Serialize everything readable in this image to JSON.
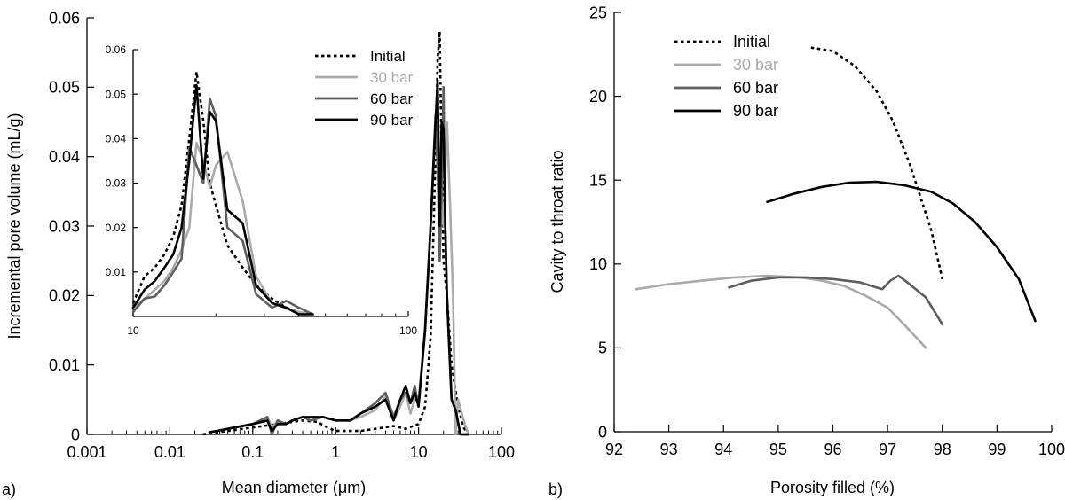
{
  "figure": {
    "panel_a_label": "a)",
    "panel_b_label": "b)"
  },
  "colors": {
    "Initial": "#000000",
    "30 bar": "#aaaaaa",
    "60 bar": "#5e5e5e",
    "90 bar": "#000000"
  },
  "chart_data": [
    {
      "id": "panel-a-main",
      "type": "line",
      "title": "",
      "xlabel": "Mean diameter (μm)",
      "ylabel": "Incremental pore volume (mL/g)",
      "xscale": "log",
      "xlim": [
        0.001,
        100
      ],
      "ylim": [
        0,
        0.06
      ],
      "xticks": [
        0.001,
        0.01,
        0.1,
        1,
        10,
        100
      ],
      "xtick_labels": [
        "0.001",
        "0.01",
        "0.1",
        "1",
        "10",
        "100"
      ],
      "yticks": [
        0,
        0.01,
        0.02,
        0.03,
        0.04,
        0.05,
        0.06
      ],
      "ytick_labels": [
        "0",
        "0.01",
        "0.02",
        "0.03",
        "0.04",
        "0.05",
        "0.06"
      ],
      "grid": false,
      "legend_position": "top-right",
      "series": [
        {
          "name": "Initial",
          "style": "dotted",
          "x": [
            0.025,
            0.05,
            0.1,
            0.2,
            0.4,
            0.6,
            0.8,
            1,
            2,
            3,
            5,
            7,
            10,
            12,
            14,
            16,
            17,
            18,
            19,
            20,
            22,
            25,
            30,
            35,
            40
          ],
          "y": [
            0.0,
            0.0005,
            0.001,
            0.0015,
            0.002,
            0.0018,
            0.001,
            0.0005,
            0.0005,
            0.0008,
            0.0012,
            0.0008,
            0.0015,
            0.004,
            0.014,
            0.04,
            0.054,
            0.058,
            0.04,
            0.025,
            0.02,
            0.01,
            0.004,
            0.001,
            0.0
          ]
        },
        {
          "name": "30 bar",
          "style": "solid",
          "x": [
            0.03,
            0.05,
            0.1,
            0.15,
            0.17,
            0.2,
            0.25,
            0.3,
            0.4,
            0.5,
            0.7,
            1,
            1.5,
            2,
            3,
            4,
            5,
            6,
            7,
            8,
            9,
            10,
            12,
            14,
            16,
            18,
            20,
            22,
            24,
            26,
            28,
            30,
            35,
            40
          ],
          "y": [
            0.0003,
            0.0008,
            0.0015,
            0.0025,
            0.001,
            0.002,
            0.0015,
            0.002,
            0.0025,
            0.002,
            0.0025,
            0.002,
            0.002,
            0.0025,
            0.0035,
            0.0055,
            0.002,
            0.004,
            0.006,
            0.003,
            0.005,
            0.005,
            0.015,
            0.03,
            0.045,
            0.038,
            0.03,
            0.045,
            0.033,
            0.02,
            0.0,
            0.005,
            0.002,
            0.0
          ]
        },
        {
          "name": "60 bar",
          "style": "solid",
          "x": [
            0.03,
            0.05,
            0.1,
            0.15,
            0.17,
            0.2,
            0.25,
            0.3,
            0.4,
            0.5,
            0.7,
            1,
            1.5,
            2,
            3,
            4,
            5,
            6,
            7,
            8,
            9,
            10,
            12,
            14,
            16,
            17,
            18,
            19,
            20,
            21,
            22,
            25,
            28,
            32,
            40
          ],
          "y": [
            0.0003,
            0.0008,
            0.0015,
            0.0025,
            0.0,
            0.002,
            0.0015,
            0.002,
            0.0025,
            0.002,
            0.0025,
            0.002,
            0.002,
            0.003,
            0.0045,
            0.006,
            0.0025,
            0.005,
            0.006,
            0.0045,
            0.007,
            0.004,
            0.0155,
            0.03,
            0.046,
            0.038,
            0.025,
            0.035,
            0.05,
            0.03,
            0.02,
            0.005,
            0.0035,
            0.0,
            0.0
          ]
        },
        {
          "name": "90 bar",
          "style": "solid",
          "x": [
            0.03,
            0.05,
            0.1,
            0.15,
            0.17,
            0.2,
            0.25,
            0.3,
            0.4,
            0.5,
            0.7,
            1,
            1.5,
            2,
            3,
            4,
            5,
            6,
            7,
            8,
            9,
            10,
            12,
            14,
            16,
            17,
            18,
            19,
            20,
            21,
            22,
            25,
            28,
            32,
            40
          ],
          "y": [
            0.0003,
            0.0008,
            0.0015,
            0.002,
            0.0005,
            0.0015,
            0.0015,
            0.002,
            0.0025,
            0.0025,
            0.0025,
            0.002,
            0.002,
            0.003,
            0.004,
            0.005,
            0.002,
            0.005,
            0.007,
            0.0045,
            0.006,
            0.004,
            0.015,
            0.03,
            0.045,
            0.051,
            0.03,
            0.045,
            0.044,
            0.03,
            0.02,
            0.005,
            0.0035,
            0.0,
            0.0
          ]
        }
      ]
    },
    {
      "id": "panel-a-inset",
      "type": "line",
      "title": "",
      "xlabel": "",
      "ylabel": "",
      "xscale": "log",
      "xlim": [
        10,
        100
      ],
      "ylim": [
        0,
        0.06
      ],
      "xticks": [
        10,
        100
      ],
      "xtick_labels": [
        "10",
        "100"
      ],
      "yticks": [
        0.01,
        0.02,
        0.03,
        0.04,
        0.05,
        0.06
      ],
      "ytick_labels": [
        "0.01",
        "0.02",
        "0.03",
        "0.04",
        "0.05",
        "0.06"
      ],
      "grid": false,
      "series": [
        {
          "name": "Initial",
          "style": "dotted",
          "x": [
            10,
            11,
            12,
            13,
            14,
            15,
            16,
            17,
            18,
            19,
            20,
            22,
            25,
            28,
            32,
            36,
            40,
            45
          ],
          "y": [
            0.003,
            0.009,
            0.011,
            0.014,
            0.018,
            0.025,
            0.04,
            0.055,
            0.044,
            0.03,
            0.025,
            0.016,
            0.011,
            0.007,
            0.004,
            0.002,
            0.001,
            0.0005
          ]
        },
        {
          "name": "30 bar",
          "style": "solid",
          "x": [
            10,
            11,
            12,
            13,
            14,
            15,
            16,
            17,
            18,
            19,
            20,
            22,
            25,
            28,
            32,
            36,
            40,
            45
          ],
          "y": [
            0.002,
            0.004,
            0.006,
            0.008,
            0.011,
            0.015,
            0.02,
            0.039,
            0.035,
            0.029,
            0.034,
            0.037,
            0.026,
            0.009,
            0.003,
            0.0018,
            0.001,
            0.0005
          ]
        },
        {
          "name": "60 bar",
          "style": "solid",
          "x": [
            10,
            11,
            12,
            13,
            14,
            15,
            16,
            17,
            18,
            19,
            20,
            22,
            25,
            28,
            32,
            36,
            40,
            45
          ],
          "y": [
            0.001,
            0.004,
            0.0045,
            0.007,
            0.01,
            0.013,
            0.038,
            0.034,
            0.03,
            0.049,
            0.045,
            0.02,
            0.017,
            0.005,
            0.002,
            0.0035,
            0.002,
            0.0005
          ]
        },
        {
          "name": "90 bar",
          "style": "solid",
          "x": [
            10,
            11,
            12,
            13,
            14,
            15,
            16,
            17,
            18,
            19,
            20,
            22,
            25,
            28,
            32,
            36,
            40,
            45
          ],
          "y": [
            0.002,
            0.006,
            0.008,
            0.011,
            0.014,
            0.02,
            0.035,
            0.052,
            0.031,
            0.046,
            0.044,
            0.024,
            0.021,
            0.007,
            0.003,
            0.002,
            0.0005,
            0.0005
          ]
        }
      ]
    },
    {
      "id": "panel-b",
      "type": "line",
      "title": "",
      "xlabel": "Porosity filled (%)",
      "ylabel": "Cavity to throat ratio",
      "xlim": [
        92,
        100
      ],
      "ylim": [
        0,
        25
      ],
      "xticks": [
        92,
        93,
        94,
        95,
        96,
        97,
        98,
        99,
        100
      ],
      "xtick_labels": [
        "92",
        "93",
        "94",
        "95",
        "96",
        "97",
        "98",
        "99",
        "100"
      ],
      "yticks": [
        0,
        5,
        10,
        15,
        20,
        25
      ],
      "ytick_labels": [
        "0",
        "5",
        "10",
        "15",
        "20",
        "25"
      ],
      "grid": false,
      "legend_position": "top-left",
      "series": [
        {
          "name": "Initial",
          "style": "dotted",
          "x": [
            95.6,
            96.0,
            96.4,
            96.8,
            97.1,
            97.4,
            97.6,
            97.8,
            98.0
          ],
          "y": [
            22.9,
            22.7,
            21.8,
            20.3,
            18.5,
            16.0,
            14.0,
            12.0,
            9.1
          ]
        },
        {
          "name": "30 bar",
          "style": "solid",
          "x": [
            92.4,
            93.0,
            93.6,
            94.2,
            94.8,
            95.4,
            95.8,
            96.2,
            96.6,
            97.0,
            97.3,
            97.7
          ],
          "y": [
            8.5,
            8.8,
            9.0,
            9.2,
            9.3,
            9.2,
            9.0,
            8.7,
            8.1,
            7.4,
            6.4,
            5.0
          ]
        },
        {
          "name": "60 bar",
          "style": "solid",
          "x": [
            94.1,
            94.5,
            95.0,
            95.5,
            96.0,
            96.5,
            96.9,
            97.05,
            97.2,
            97.4,
            97.7,
            98.0
          ],
          "y": [
            8.6,
            9.0,
            9.2,
            9.2,
            9.1,
            8.9,
            8.5,
            9.0,
            9.3,
            8.8,
            8.0,
            6.4
          ]
        },
        {
          "name": "90 bar",
          "style": "solid",
          "x": [
            94.8,
            95.3,
            95.8,
            96.3,
            96.8,
            97.3,
            97.8,
            98.2,
            98.6,
            99.0,
            99.4,
            99.7
          ],
          "y": [
            13.7,
            14.2,
            14.6,
            14.85,
            14.9,
            14.7,
            14.3,
            13.6,
            12.5,
            11.0,
            9.1,
            6.6
          ]
        }
      ]
    }
  ]
}
